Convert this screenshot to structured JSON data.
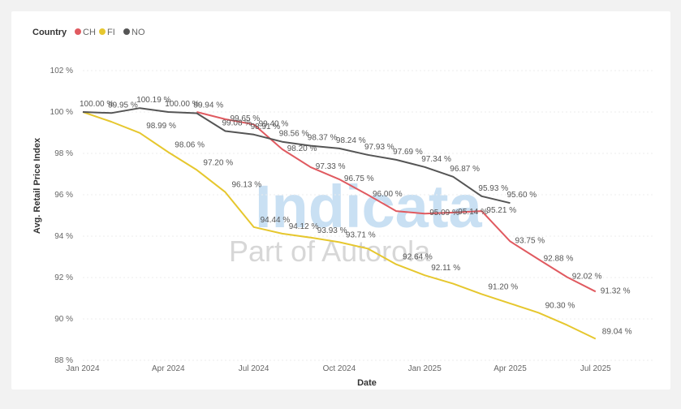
{
  "watermark": {
    "brand": "Indicata",
    "tagline": "Part of Autorola"
  },
  "chart_data": {
    "type": "line",
    "legend_title": "Country",
    "legend_position": "top-left",
    "xlabel": "Date",
    "ylabel": "Avg. Retail Price Index",
    "ylim": [
      88,
      102
    ],
    "yticks": [
      88,
      90,
      92,
      94,
      96,
      98,
      100,
      102
    ],
    "ytick_labels": [
      "88 %",
      "90 %",
      "92 %",
      "94 %",
      "96 %",
      "98 %",
      "100 %",
      "102 %"
    ],
    "x_range": [
      "2024-01",
      "2025-09"
    ],
    "xticks": [
      {
        "x": "2024-01",
        "label": "Jan 2024"
      },
      {
        "x": "2024-04",
        "label": "Apr 2024"
      },
      {
        "x": "2024-07",
        "label": "Jul 2024"
      },
      {
        "x": "2024-10",
        "label": "Oct 2024"
      },
      {
        "x": "2025-01",
        "label": "Jan 2025"
      },
      {
        "x": "2025-04",
        "label": "Apr 2025"
      },
      {
        "x": "2025-07",
        "label": "Jul 2025"
      }
    ],
    "grid": true,
    "series": [
      {
        "name": "CH",
        "color": "#e05a60",
        "points": [
          {
            "x": "2024-05",
            "y": 100.0
          },
          {
            "x": "2024-06",
            "y": 99.65
          },
          {
            "x": "2024-07",
            "y": 99.4
          },
          {
            "x": "2024-08",
            "y": 98.2
          },
          {
            "x": "2024-09",
            "y": 97.33
          },
          {
            "x": "2024-10",
            "y": 96.75
          },
          {
            "x": "2024-11",
            "y": 96.0
          },
          {
            "x": "2024-12",
            "y": 95.21
          },
          {
            "x": "2025-01",
            "y": 95.09
          },
          {
            "x": "2025-02",
            "y": 95.14
          },
          {
            "x": "2025-03",
            "y": 95.21
          },
          {
            "x": "2025-04",
            "y": 93.75
          },
          {
            "x": "2025-05",
            "y": 92.88
          },
          {
            "x": "2025-06",
            "y": 92.02
          },
          {
            "x": "2025-07",
            "y": 91.32
          }
        ],
        "labels": [
          "",
          "99.65 %",
          "99.40 %",
          "98.20 %",
          "97.33 %",
          "96.75 %",
          "96.00 %",
          "",
          "95.09 %",
          "95.14 %",
          "95.21 %",
          "93.75 %",
          "92.88 %",
          "92.02 %",
          "91.32 %"
        ]
      },
      {
        "name": "FI",
        "color": "#e6c72e",
        "points": [
          {
            "x": "2024-01",
            "y": 100.0
          },
          {
            "x": "2024-02",
            "y": 99.53
          },
          {
            "x": "2024-03",
            "y": 98.99
          },
          {
            "x": "2024-04",
            "y": 98.06
          },
          {
            "x": "2024-05",
            "y": 97.2
          },
          {
            "x": "2024-06",
            "y": 96.13
          },
          {
            "x": "2024-07",
            "y": 94.44
          },
          {
            "x": "2024-08",
            "y": 94.12
          },
          {
            "x": "2024-09",
            "y": 93.93
          },
          {
            "x": "2024-10",
            "y": 93.71
          },
          {
            "x": "2024-11",
            "y": 93.4
          },
          {
            "x": "2024-12",
            "y": 92.64
          },
          {
            "x": "2025-01",
            "y": 92.11
          },
          {
            "x": "2025-02",
            "y": 91.7
          },
          {
            "x": "2025-03",
            "y": 91.2
          },
          {
            "x": "2025-04",
            "y": 90.75
          },
          {
            "x": "2025-05",
            "y": 90.3
          },
          {
            "x": "2025-06",
            "y": 89.7
          },
          {
            "x": "2025-07",
            "y": 89.04
          }
        ],
        "labels": [
          "",
          "",
          "98.99 %",
          "98.06 %",
          "97.20 %",
          "96.13 %",
          "94.44 %",
          "94.12 %",
          "93.93 %",
          "93.71 %",
          "",
          "92.64 %",
          "92.11 %",
          "",
          "91.20 %",
          "",
          "90.30 %",
          "",
          "89.04 %"
        ]
      },
      {
        "name": "NO",
        "color": "#555555",
        "points": [
          {
            "x": "2024-01",
            "y": 100.0
          },
          {
            "x": "2024-02",
            "y": 99.95
          },
          {
            "x": "2024-03",
            "y": 100.19
          },
          {
            "x": "2024-04",
            "y": 100.0
          },
          {
            "x": "2024-05",
            "y": 99.94
          },
          {
            "x": "2024-06",
            "y": 99.08
          },
          {
            "x": "2024-07",
            "y": 98.91
          },
          {
            "x": "2024-08",
            "y": 98.56
          },
          {
            "x": "2024-09",
            "y": 98.37
          },
          {
            "x": "2024-10",
            "y": 98.24
          },
          {
            "x": "2024-11",
            "y": 97.93
          },
          {
            "x": "2024-12",
            "y": 97.69
          },
          {
            "x": "2025-01",
            "y": 97.34
          },
          {
            "x": "2025-02",
            "y": 96.87
          },
          {
            "x": "2025-03",
            "y": 95.93
          },
          {
            "x": "2025-04",
            "y": 95.6
          }
        ],
        "labels": [
          "100.00 %",
          "99.95 %",
          "100.19 %",
          "100.00 %",
          "99.94 %",
          "99.08 %",
          "98.91 %",
          "98.56 %",
          "98.37 %",
          "98.24 %",
          "97.93 %",
          "97.69 %",
          "97.34 %",
          "96.87 %",
          "95.93 %",
          "95.60 %"
        ]
      }
    ]
  }
}
